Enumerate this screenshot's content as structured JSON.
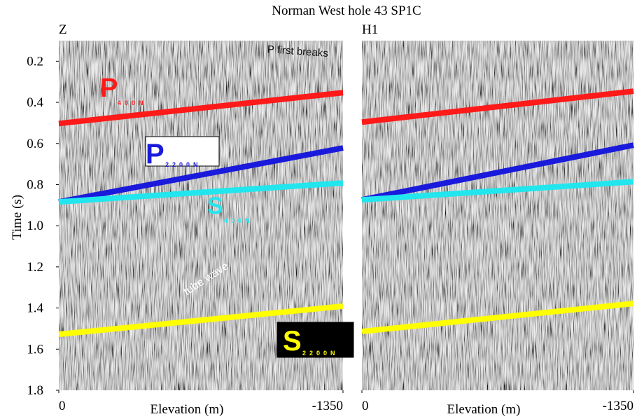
{
  "title": "Norman West hole 43  SP1C",
  "chart_data": [
    {
      "type": "line",
      "panel_label": "Z",
      "xlabel": "Elevation (m)",
      "ylabel": "Time (s)",
      "x": [
        0,
        -1350
      ],
      "xlim": [
        0,
        -1350
      ],
      "xticks": [
        0,
        -1350
      ],
      "ylim": [
        1.8,
        0.1
      ],
      "yticks": [
        0.2,
        0.4,
        0.6,
        0.8,
        {
          "value": 1,
          "label": "1.0"
        },
        1.2,
        1.4,
        1.6,
        1.8
      ],
      "series": [
        {
          "color": "#ff1a1a",
          "values": [
            0.503,
            0.353
          ]
        },
        {
          "color": "#1a1adc",
          "values": [
            0.884,
            0.622
          ]
        },
        {
          "color": "#22e6ee",
          "values": [
            0.884,
            0.792
          ]
        },
        {
          "color": "#ffff00",
          "values": [
            1.528,
            1.391
          ]
        }
      ],
      "annotations": [
        {
          "text": "P first breaks",
          "color": "#111111"
        },
        {
          "text": "P",
          "sub": "400N",
          "color": "#ff1a1a"
        },
        {
          "text": "P",
          "sub": "2200N",
          "color": "#1a1adc"
        },
        {
          "text": "S",
          "sub": "400N",
          "color": "#22e6ee"
        },
        {
          "text": "tube wave",
          "color": "#ffffff"
        },
        {
          "text": "S",
          "sub": "2200N",
          "color": "#ffff00"
        }
      ]
    },
    {
      "type": "line",
      "panel_label": "H1",
      "xlabel": "Elevation (m)",
      "x": [
        0,
        -1350
      ],
      "xlim": [
        0,
        -1350
      ],
      "xticks": [
        0,
        -1350
      ],
      "ylim": [
        1.8,
        0.1
      ],
      "series": [
        {
          "color": "#ff1a1a",
          "values": [
            0.496,
            0.346
          ]
        },
        {
          "color": "#1a1adc",
          "values": [
            0.874,
            0.608
          ]
        },
        {
          "color": "#22e6ee",
          "values": [
            0.874,
            0.786
          ]
        },
        {
          "color": "#ffff00",
          "values": [
            1.514,
            1.378
          ]
        }
      ]
    }
  ]
}
